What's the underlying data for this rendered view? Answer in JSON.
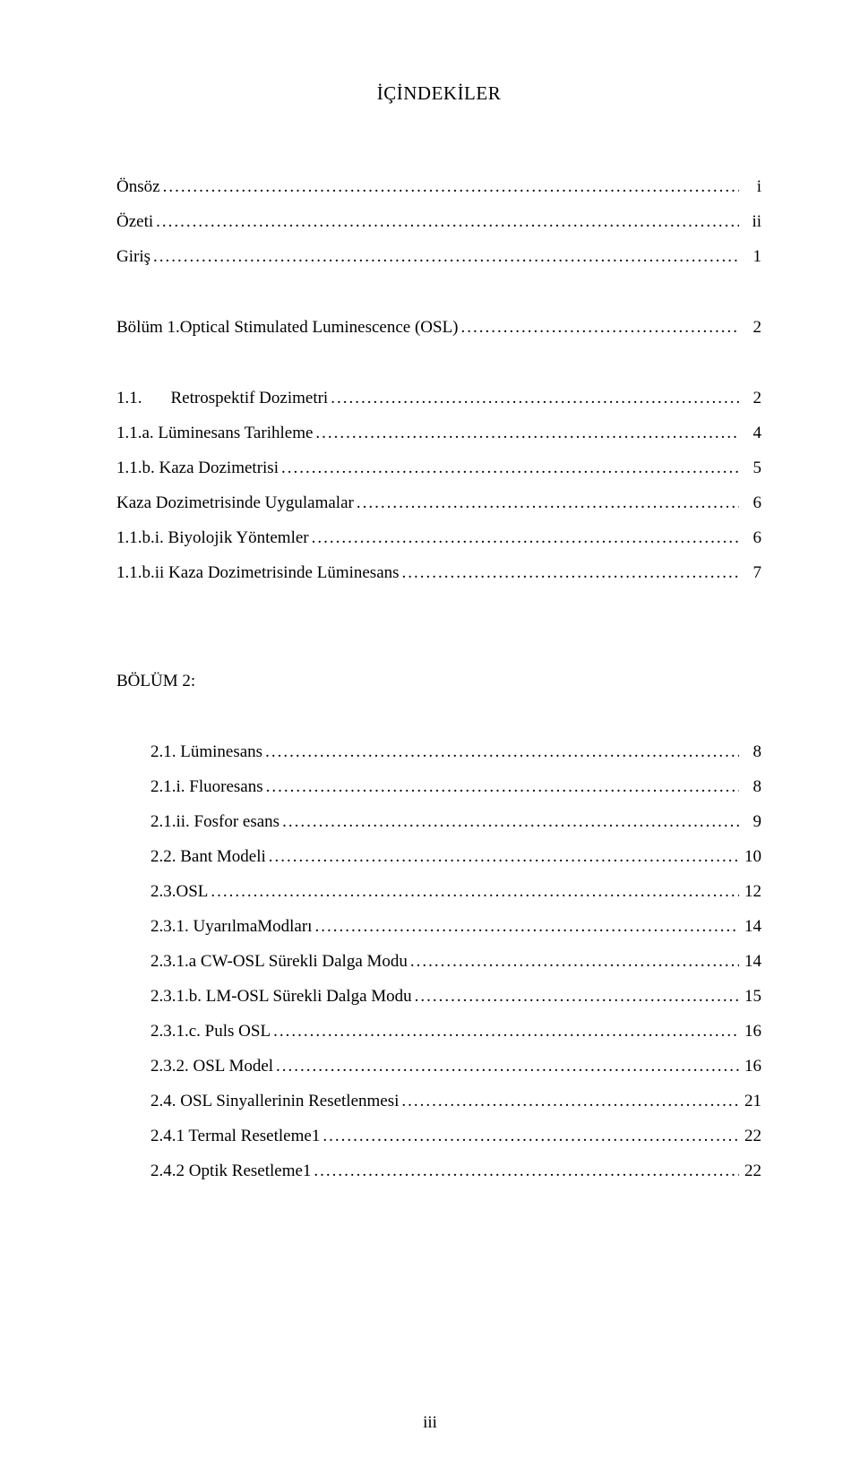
{
  "title": "İÇİNDEKİLER",
  "front": [
    {
      "label": "Önsöz",
      "page": "i"
    },
    {
      "label": "Özeti",
      "page": "ii"
    },
    {
      "label": "Giriş",
      "page": "1"
    }
  ],
  "ch1_heading": {
    "label": "Bölüm 1.Optical Stimulated Luminescence (OSL)",
    "page": "2"
  },
  "ch1_entries": [
    {
      "label_a": "1.1.",
      "label_b": "Retrospektif Dozimetri",
      "page": "2"
    },
    {
      "label": "1.1.a. Lüminesans Tarihleme",
      "page": "4"
    },
    {
      "label": "1.1.b. Kaza Dozimetrisi",
      "page": "5"
    },
    {
      "label": "Kaza Dozimetrisinde Uygulamalar",
      "page": "6"
    },
    {
      "label": "1.1.b.i. Biyolojik Yöntemler",
      "page": "6"
    },
    {
      "label": "1.1.b.ii Kaza Dozimetrisinde Lüminesans",
      "page": "7"
    }
  ],
  "ch2_heading": "BÖLÜM  2:",
  "ch2_entries": [
    {
      "label": "2.1. Lüminesans",
      "page": "8"
    },
    {
      "label": "2.1.i. Fluoresans",
      "page": "8"
    },
    {
      "label": "2.1.ii. Fosfor esans",
      "page": "9"
    },
    {
      "label": "2.2. Bant Modeli",
      "page": "10"
    },
    {
      "label": "2.3.OSL",
      "page": "12"
    },
    {
      "label": "2.3.1. UyarılmaModları",
      "page": "14"
    },
    {
      "label": "2.3.1.a CW-OSL Sürekli Dalga Modu",
      "page": "14"
    },
    {
      "label": "2.3.1.b. LM-OSL Sürekli Dalga Modu",
      "page": "15"
    },
    {
      "label": "2.3.1.c. Puls OSL",
      "page": "16"
    },
    {
      "label": "2.3.2. OSL Model",
      "page": "16"
    },
    {
      "label": "2.4. OSL Sinyallerinin Resetlenmesi",
      "page": "21"
    },
    {
      "label": "2.4.1 Termal Resetleme1",
      "page": "22"
    },
    {
      "label": "2.4.2 Optik Resetleme1",
      "page": "22"
    }
  ],
  "footer_page": "iii"
}
